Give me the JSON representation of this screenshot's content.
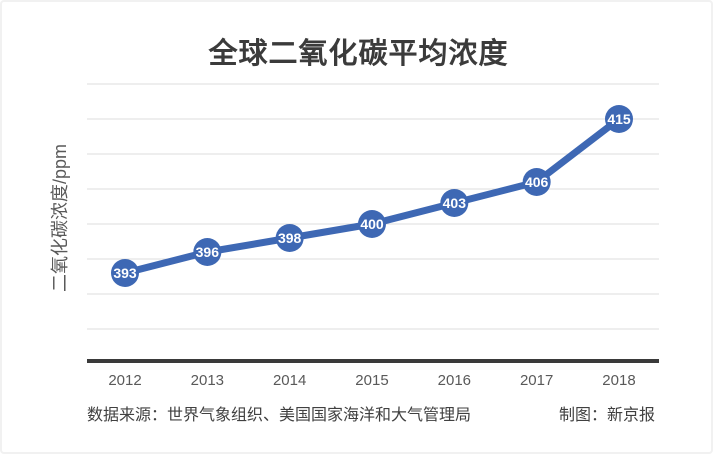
{
  "title": "全球二氧化碳平均浓度",
  "y_axis_label": "二氧化碳浓度/ppm",
  "footer": {
    "source": "数据来源：世界气象组织、美国国家海洋和大气管理局",
    "credit": "制图：新京报"
  },
  "colors": {
    "line": "#3e68b4",
    "marker": "#3e68b4",
    "marker_text": "#ffffff",
    "gridline": "#dcdcdc",
    "axis": "#3a3a3a",
    "title_text": "#3b3b3b",
    "tick_text": "#595959",
    "footer_text": "#404040"
  },
  "chart_data": {
    "type": "line",
    "title": "全球二氧化碳平均浓度",
    "categories": [
      "2012",
      "2013",
      "2014",
      "2015",
      "2016",
      "2017",
      "2018"
    ],
    "series": [
      {
        "name": "全球二氧化碳平均浓度",
        "values": [
          393,
          396,
          398,
          400,
          403,
          406,
          415
        ]
      }
    ],
    "xlabel": "",
    "ylabel": "二氧化碳浓度/ppm",
    "unit": "ppm",
    "ylim": [
      385,
      420
    ],
    "gridline_interval": 5,
    "grid": "horizontal",
    "y_ticks_labeled": false,
    "data_labels": true,
    "legend": "none"
  }
}
